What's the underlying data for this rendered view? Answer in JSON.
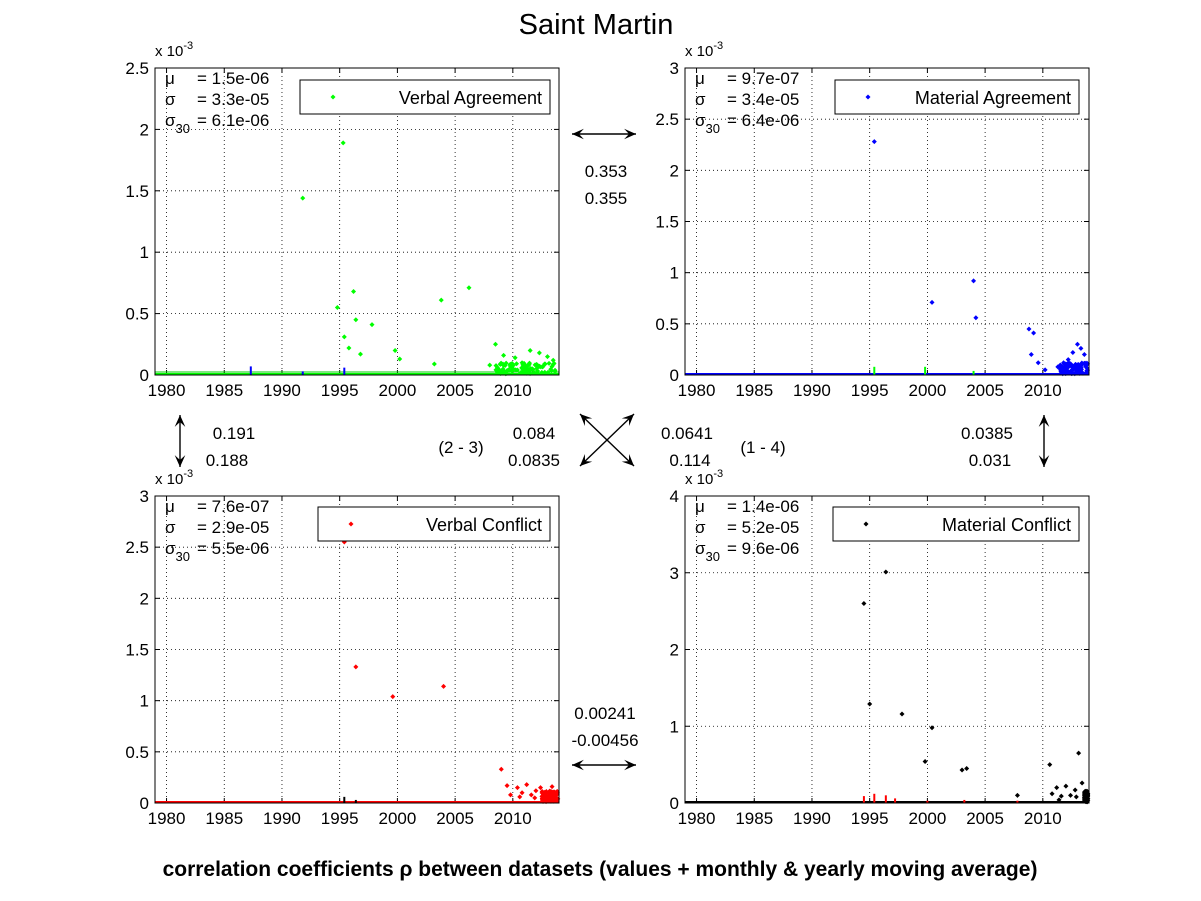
{
  "title": "Saint Martin",
  "footer": "correlation coefficients ρ between datasets (values + monthly & yearly moving average)",
  "exponent_label": "x 10",
  "exponent_power": "-3",
  "colors": {
    "verbal_agreement": "#00ff00",
    "material_agreement": "#0000ff",
    "verbal_conflict": "#ff0000",
    "material_conflict": "#000000"
  },
  "correlations": {
    "top": [
      "0.353",
      "0.355"
    ],
    "left": [
      "0.191",
      "0.188"
    ],
    "right": [
      "0.0385",
      "0.031"
    ],
    "bottom": [
      "0.00241",
      "-0.00456"
    ],
    "diag_23_label": "(2 - 3)",
    "diag_23": [
      "0.084",
      "0.0835"
    ],
    "diag_14_label": "(1 - 4)",
    "diag_14": [
      "0.0641",
      "0.114"
    ]
  },
  "chart_data": [
    {
      "type": "scatter",
      "legend": "Verbal Agreement",
      "color": "#00ff00",
      "stats": {
        "mu": "= 1.5e-06",
        "sigma": "= 3.3e-05",
        "sigma30": "= 6.1e-06"
      },
      "xlim": [
        1979,
        2014
      ],
      "ylim": [
        0,
        2.5
      ],
      "xticks": [
        "1980",
        "1985",
        "1990",
        "1995",
        "2000",
        "2005",
        "2010"
      ],
      "yticks": [
        "0",
        "0.5",
        "1",
        "1.5",
        "2",
        "2.5"
      ],
      "points": [
        [
          1991.8,
          1.44
        ],
        [
          1995.3,
          1.89
        ],
        [
          1994.8,
          0.55
        ],
        [
          1995.4,
          0.31
        ],
        [
          1996.2,
          0.68
        ],
        [
          1996.4,
          0.45
        ],
        [
          1995.8,
          0.22
        ],
        [
          1996.8,
          0.17
        ],
        [
          1997.8,
          0.41
        ],
        [
          1999.8,
          0.2
        ],
        [
          2000.2,
          0.13
        ],
        [
          2003.8,
          0.61
        ],
        [
          2006.2,
          0.71
        ],
        [
          2003.2,
          0.09
        ],
        [
          2008.5,
          0.25
        ],
        [
          2009.2,
          0.16
        ],
        [
          2010.2,
          0.14
        ],
        [
          2011.5,
          0.2
        ],
        [
          2012.3,
          0.18
        ],
        [
          2013.0,
          0.15
        ],
        [
          2008.0,
          0.08
        ],
        [
          2009.8,
          0.07
        ],
        [
          2010.8,
          0.1
        ],
        [
          2011.0,
          0.06
        ],
        [
          2012.8,
          0.09
        ],
        [
          2013.5,
          0.12
        ]
      ],
      "dense_from": 2008.5,
      "other_markers": [
        [
          1987.3,
          0.07,
          "#0000ff"
        ],
        [
          1991.8,
          0.03,
          "#0000ff"
        ],
        [
          1995.4,
          0.06,
          "#0000ff"
        ]
      ]
    },
    {
      "type": "scatter",
      "legend": "Material Agreement",
      "color": "#0000ff",
      "stats": {
        "mu": "= 9.7e-07",
        "sigma": "= 3.4e-05",
        "sigma30": "= 6.4e-06"
      },
      "xlim": [
        1979,
        2014
      ],
      "ylim": [
        0,
        3
      ],
      "xticks": [
        "1980",
        "1985",
        "1990",
        "1995",
        "2000",
        "2005",
        "2010"
      ],
      "yticks": [
        "0",
        "0.5",
        "1",
        "1.5",
        "2",
        "2.5",
        "3"
      ],
      "points": [
        [
          1995.4,
          2.28
        ],
        [
          2000.4,
          0.71
        ],
        [
          2004.0,
          0.92
        ],
        [
          2004.2,
          0.56
        ],
        [
          2008.8,
          0.45
        ],
        [
          2009.2,
          0.41
        ],
        [
          2009.0,
          0.2
        ],
        [
          2009.6,
          0.12
        ],
        [
          2010.2,
          0.05
        ],
        [
          2011.3,
          0.08
        ],
        [
          2011.8,
          0.12
        ],
        [
          2012.2,
          0.15
        ],
        [
          2012.6,
          0.22
        ],
        [
          2013.0,
          0.3
        ],
        [
          2013.3,
          0.26
        ],
        [
          2013.6,
          0.2
        ],
        [
          2013.8,
          0.1
        ],
        [
          2013.1,
          0.08
        ],
        [
          2012.9,
          0.05
        ],
        [
          2012.0,
          0.04
        ]
      ],
      "dense_from": 2011.5,
      "other_markers": [
        [
          1995.4,
          0.08,
          "#00ff00"
        ],
        [
          1999.8,
          0.08,
          "#00ff00"
        ],
        [
          2004.0,
          0.04,
          "#00ff00"
        ]
      ]
    },
    {
      "type": "scatter",
      "legend": "Verbal Conflict",
      "color": "#ff0000",
      "stats": {
        "mu": "= 7.6e-07",
        "sigma": "= 2.9e-05",
        "sigma30": "= 5.5e-06"
      },
      "xlim": [
        1979,
        2014
      ],
      "ylim": [
        0,
        3
      ],
      "xticks": [
        "1980",
        "1985",
        "1990",
        "1995",
        "2000",
        "2005",
        "2010"
      ],
      "yticks": [
        "0",
        "0.5",
        "1",
        "1.5",
        "2",
        "2.5",
        "3"
      ],
      "points": [
        [
          1995.4,
          2.55
        ],
        [
          1996.4,
          1.33
        ],
        [
          1999.6,
          1.04
        ],
        [
          2004.0,
          1.14
        ],
        [
          2009.0,
          0.33
        ],
        [
          2009.5,
          0.17
        ],
        [
          2009.8,
          0.08
        ],
        [
          2010.4,
          0.15
        ],
        [
          2010.8,
          0.1
        ],
        [
          2011.2,
          0.18
        ],
        [
          2011.6,
          0.08
        ],
        [
          2012.0,
          0.12
        ],
        [
          2012.4,
          0.15
        ],
        [
          2012.8,
          0.1
        ],
        [
          2013.1,
          0.06
        ],
        [
          2013.4,
          0.16
        ],
        [
          2013.7,
          0.09
        ],
        [
          2013.9,
          0.04
        ],
        [
          2011.9,
          0.05
        ],
        [
          2010.6,
          0.06
        ]
      ],
      "dense_from": 2012.5,
      "other_markers": [
        [
          1995.4,
          0.06,
          "#000000"
        ],
        [
          1996.4,
          0.03,
          "#000000"
        ]
      ]
    },
    {
      "type": "scatter",
      "legend": "Material Conflict",
      "color": "#000000",
      "stats": {
        "mu": "= 1.4e-06",
        "sigma": "= 5.2e-05",
        "sigma30": "= 9.6e-06"
      },
      "xlim": [
        1979,
        2014
      ],
      "ylim": [
        0,
        4
      ],
      "xticks": [
        "1980",
        "1985",
        "1990",
        "1995",
        "2000",
        "2005",
        "2010"
      ],
      "yticks": [
        "0",
        "1",
        "2",
        "3",
        "4"
      ],
      "points": [
        [
          1994.5,
          2.6
        ],
        [
          1995.0,
          1.29
        ],
        [
          1996.4,
          3.01
        ],
        [
          1997.8,
          1.16
        ],
        [
          1999.8,
          0.54
        ],
        [
          2000.4,
          0.98
        ],
        [
          2003.0,
          0.43
        ],
        [
          2003.4,
          0.45
        ],
        [
          2007.8,
          0.1
        ],
        [
          2010.6,
          0.5
        ],
        [
          2010.8,
          0.12
        ],
        [
          2011.2,
          0.2
        ],
        [
          2011.6,
          0.09
        ],
        [
          2012.0,
          0.22
        ],
        [
          2012.4,
          0.1
        ],
        [
          2012.8,
          0.17
        ],
        [
          2013.1,
          0.65
        ],
        [
          2013.4,
          0.26
        ],
        [
          2013.7,
          0.13
        ],
        [
          2013.9,
          0.06
        ],
        [
          2011.4,
          0.04
        ],
        [
          2012.9,
          0.08
        ]
      ],
      "dense_from": 2013.6,
      "other_markers": [
        [
          1994.5,
          0.09,
          "#ff0000"
        ],
        [
          1995.4,
          0.12,
          "#ff0000"
        ],
        [
          1996.4,
          0.1,
          "#ff0000"
        ],
        [
          1997.2,
          0.06,
          "#ff0000"
        ],
        [
          2000.0,
          0.03,
          "#ff0000"
        ],
        [
          2003.2,
          0.04,
          "#ff0000"
        ],
        [
          2007.8,
          0.03,
          "#ff0000"
        ]
      ]
    }
  ]
}
